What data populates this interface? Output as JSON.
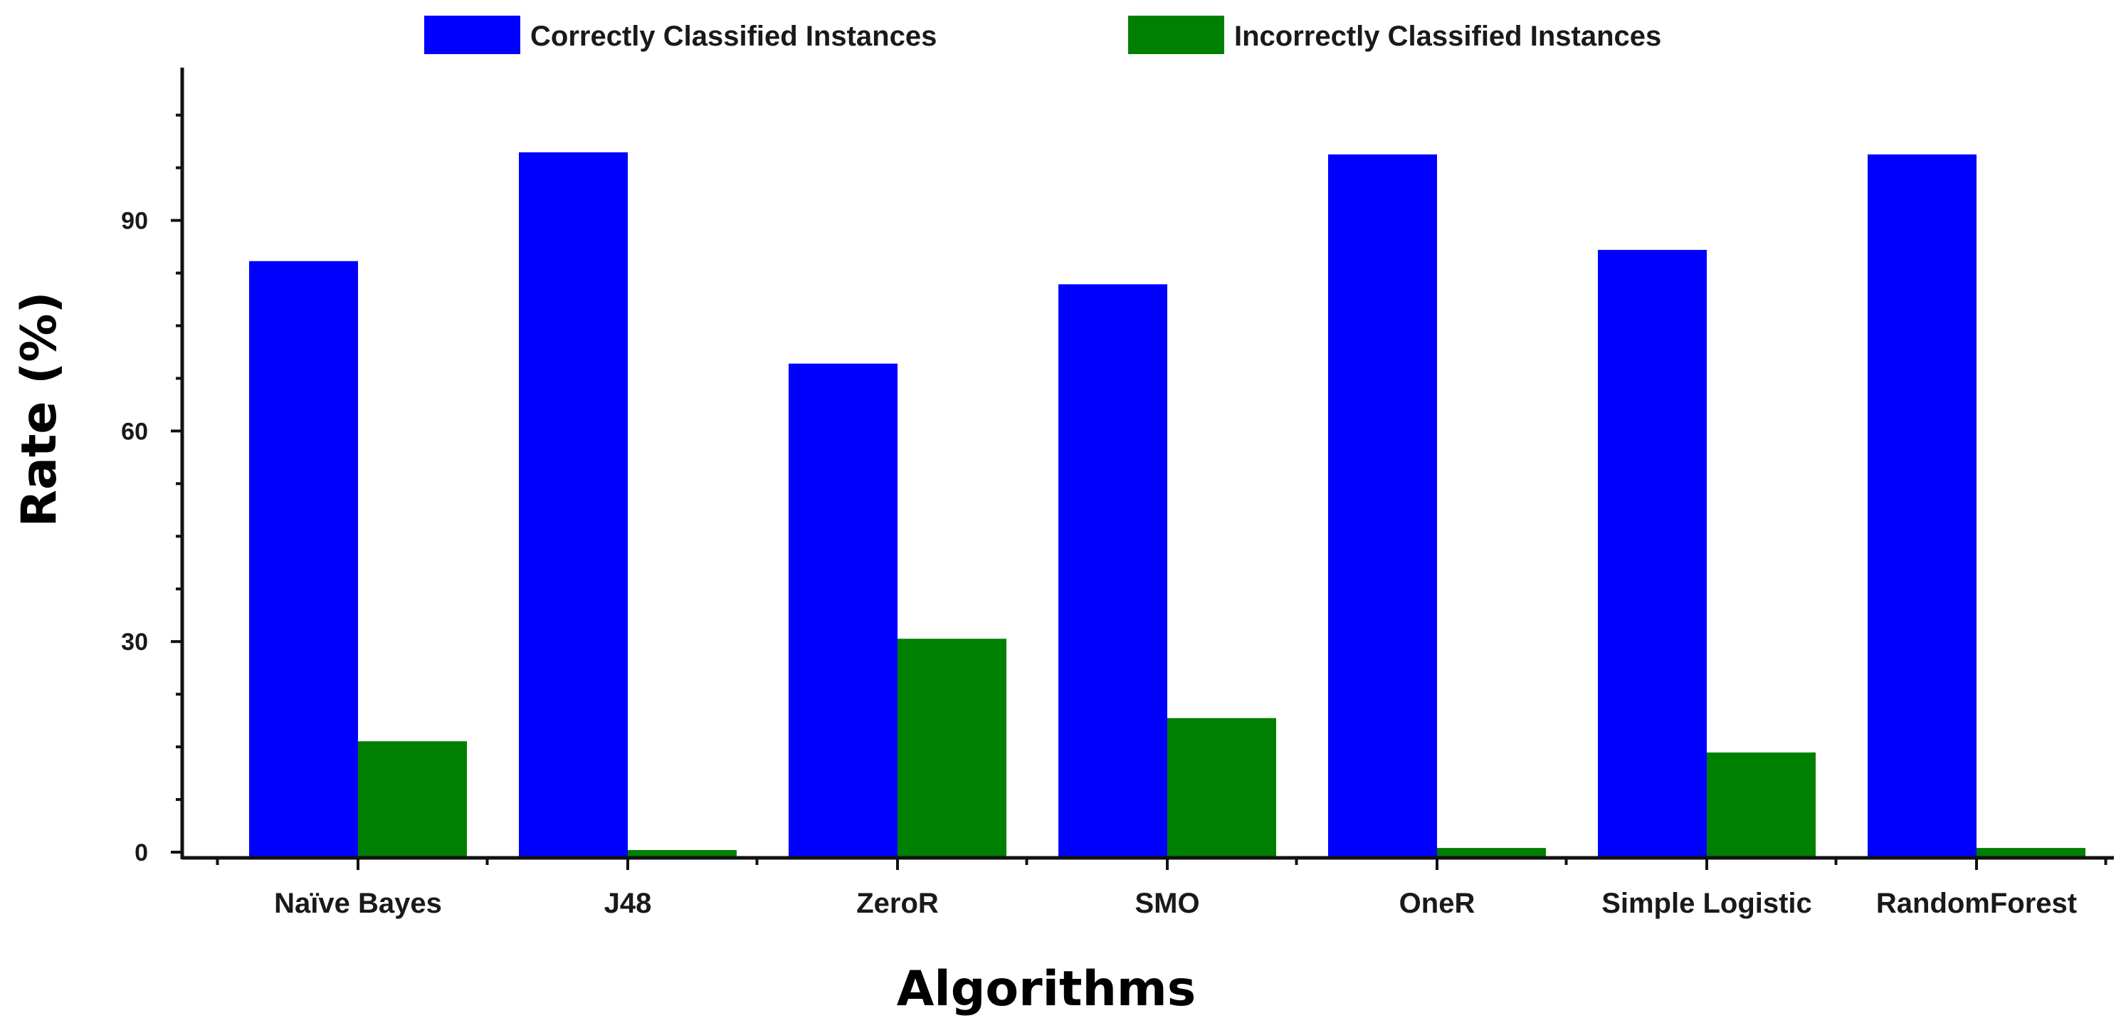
{
  "chart_data": {
    "type": "bar",
    "categories": [
      "Naïve Bayes",
      "J48",
      "ZeroR",
      "SMO",
      "OneR",
      "Simple Logistic",
      "RandomForest"
    ],
    "series": [
      {
        "name": "Correctly Classified Instances",
        "color": "#0000ff",
        "values": [
          84.2,
          99.7,
          69.6,
          80.9,
          99.4,
          85.8,
          99.4
        ]
      },
      {
        "name": "Incorrectly Classified Instances",
        "color": "#008000",
        "values": [
          15.8,
          0.3,
          30.4,
          19.1,
          0.6,
          14.2,
          0.6
        ]
      }
    ],
    "xlabel": "Algorithms",
    "ylabel": "Rate (%)",
    "ylim": [
      0,
      112
    ],
    "yticks": [
      0,
      30,
      60,
      90
    ],
    "grid": false,
    "legend_position": "top"
  }
}
